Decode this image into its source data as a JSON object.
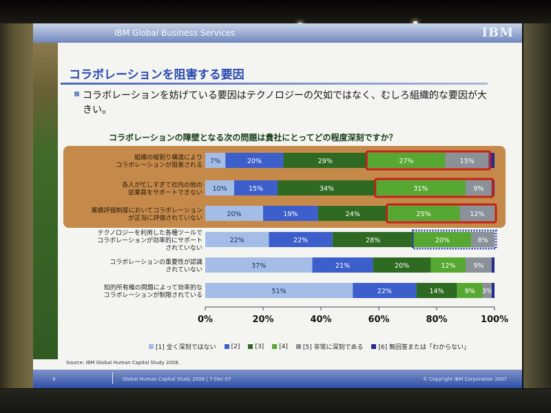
{
  "header": {
    "brand": "IBM Global Business Services",
    "logo": "IBM"
  },
  "title": "コラボレーションを阻害する要因",
  "bullet": "コラボレーションを妨げている要因はテクノロジーの欠如ではなく、むしろ組織的な要因が大きい。",
  "source": "Source: IBM Global Human Capital Study 2008.",
  "footer": {
    "page": "9",
    "event": "Global Human Capital Study 2008  |  7-Dec-07",
    "copyright": "© Copyright IBM Corporation 2007"
  },
  "colors": [
    "#a3bde6",
    "#3d5fcc",
    "#2f6a22",
    "#57a832",
    "#8b9199",
    "#242b8f"
  ],
  "highlight": {
    "band_color": "#c58a4a",
    "box_color": "#c0221c",
    "dotted_box_color": "#2a3da6"
  },
  "chart_data": {
    "type": "bar",
    "orientation": "horizontal-stacked",
    "title": "コラボレーションの障壁となる次の問題は貴社にとってどの程度深刻ですか？",
    "categories": [
      [
        "組織の縦割り構造により",
        "コラボレーションが阻害される"
      ],
      [
        "各人が忙しすぎて社内の他の",
        "従業員をサポートできない"
      ],
      [
        "業績評価制度においてコラボレーション",
        "が正当に評価されていない"
      ],
      [
        "テクノロジーを利用した各種ツールで",
        "コラボレーションが効率的にサポート",
        "されていない"
      ],
      [
        "コラボレーションの重要性が認識",
        "されていない"
      ],
      [
        "知的所有権の問題によって効率的な",
        "コラボレーションが制限されている"
      ]
    ],
    "series": [
      {
        "name": "[1] 全く深刻ではない",
        "values": [
          7,
          10,
          20,
          22,
          37,
          51
        ]
      },
      {
        "name": "[2]",
        "values": [
          20,
          15,
          19,
          22,
          21,
          22
        ]
      },
      {
        "name": "[3]",
        "values": [
          29,
          34,
          24,
          28,
          20,
          14
        ]
      },
      {
        "name": "[4]",
        "values": [
          27,
          31,
          25,
          20,
          12,
          9
        ]
      },
      {
        "name": "[5] 非常に深刻である",
        "values": [
          15,
          9,
          12,
          8,
          9,
          3
        ]
      },
      {
        "name": "[6] 無回答または「わからない」",
        "values": [
          2,
          1,
          0,
          0,
          1,
          1
        ]
      }
    ],
    "labels": [
      [
        "7%",
        "20%",
        "29%",
        "27%",
        "15%",
        ""
      ],
      [
        "10%",
        "15%",
        "34%",
        "31%",
        "9%",
        ""
      ],
      [
        "20%",
        "19%",
        "24%",
        "25%",
        "12%",
        ""
      ],
      [
        "22%",
        "22%",
        "28%",
        "20%",
        "8%",
        ""
      ],
      [
        "37%",
        "21%",
        "20%",
        "12%",
        "9%",
        ""
      ],
      [
        "51%",
        "22%",
        "14%",
        "9%",
        "3%",
        ""
      ]
    ],
    "xticks": [
      "0%",
      "20%",
      "40%",
      "60%",
      "80%",
      "100%"
    ],
    "xlim": [
      0,
      100
    ],
    "highlighted_rows": [
      0,
      1,
      2
    ],
    "highlighted_series": [
      3,
      4
    ],
    "dotted_highlight_row": 3,
    "legend_position": "bottom"
  }
}
